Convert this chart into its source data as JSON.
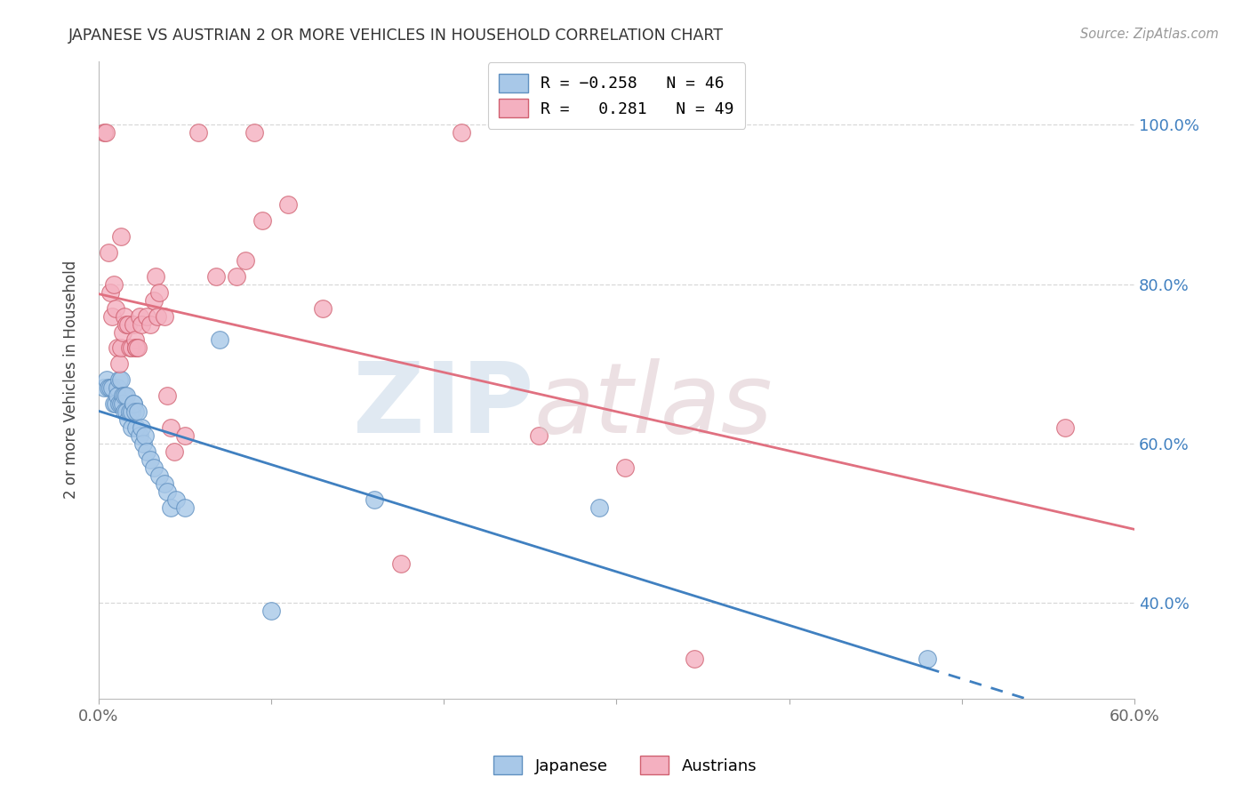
{
  "title": "JAPANESE VS AUSTRIAN 2 OR MORE VEHICLES IN HOUSEHOLD CORRELATION CHART",
  "source": "Source: ZipAtlas.com",
  "ylabel": "2 or more Vehicles in Household",
  "xlim": [
    0.0,
    0.6
  ],
  "ylim": [
    0.28,
    1.08
  ],
  "xticks": [
    0.0,
    0.1,
    0.2,
    0.3,
    0.4,
    0.5,
    0.6
  ],
  "xticklabels": [
    "0.0%",
    "",
    "",
    "",
    "",
    "",
    "60.0%"
  ],
  "ytick_positions": [
    0.4,
    0.6,
    0.8,
    1.0
  ],
  "ytick_labels": [
    "40.0%",
    "60.0%",
    "80.0%",
    "100.0%"
  ],
  "japanese_color": "#a8c8e8",
  "austrian_color": "#f4b0c0",
  "japanese_edge_color": "#6090c0",
  "austrian_edge_color": "#d06070",
  "japanese_line_color": "#4080c0",
  "austrian_line_color": "#e07080",
  "japanese_scatter": [
    [
      0.003,
      0.67
    ],
    [
      0.005,
      0.68
    ],
    [
      0.006,
      0.67
    ],
    [
      0.007,
      0.67
    ],
    [
      0.008,
      0.67
    ],
    [
      0.009,
      0.65
    ],
    [
      0.01,
      0.65
    ],
    [
      0.011,
      0.67
    ],
    [
      0.011,
      0.66
    ],
    [
      0.012,
      0.68
    ],
    [
      0.012,
      0.65
    ],
    [
      0.013,
      0.68
    ],
    [
      0.013,
      0.65
    ],
    [
      0.014,
      0.66
    ],
    [
      0.014,
      0.65
    ],
    [
      0.015,
      0.64
    ],
    [
      0.015,
      0.66
    ],
    [
      0.016,
      0.66
    ],
    [
      0.016,
      0.64
    ],
    [
      0.017,
      0.63
    ],
    [
      0.018,
      0.64
    ],
    [
      0.019,
      0.64
    ],
    [
      0.019,
      0.62
    ],
    [
      0.02,
      0.65
    ],
    [
      0.02,
      0.65
    ],
    [
      0.021,
      0.64
    ],
    [
      0.022,
      0.62
    ],
    [
      0.023,
      0.64
    ],
    [
      0.024,
      0.61
    ],
    [
      0.025,
      0.62
    ],
    [
      0.026,
      0.6
    ],
    [
      0.027,
      0.61
    ],
    [
      0.028,
      0.59
    ],
    [
      0.03,
      0.58
    ],
    [
      0.032,
      0.57
    ],
    [
      0.035,
      0.56
    ],
    [
      0.038,
      0.55
    ],
    [
      0.04,
      0.54
    ],
    [
      0.042,
      0.52
    ],
    [
      0.045,
      0.53
    ],
    [
      0.05,
      0.52
    ],
    [
      0.07,
      0.73
    ],
    [
      0.1,
      0.39
    ],
    [
      0.16,
      0.53
    ],
    [
      0.29,
      0.52
    ],
    [
      0.48,
      0.33
    ]
  ],
  "austrian_scatter": [
    [
      0.003,
      0.99
    ],
    [
      0.004,
      0.99
    ],
    [
      0.006,
      0.84
    ],
    [
      0.007,
      0.79
    ],
    [
      0.008,
      0.76
    ],
    [
      0.009,
      0.8
    ],
    [
      0.01,
      0.77
    ],
    [
      0.011,
      0.72
    ],
    [
      0.012,
      0.7
    ],
    [
      0.013,
      0.72
    ],
    [
      0.013,
      0.86
    ],
    [
      0.014,
      0.74
    ],
    [
      0.015,
      0.76
    ],
    [
      0.016,
      0.75
    ],
    [
      0.017,
      0.75
    ],
    [
      0.018,
      0.72
    ],
    [
      0.019,
      0.72
    ],
    [
      0.02,
      0.75
    ],
    [
      0.021,
      0.73
    ],
    [
      0.022,
      0.72
    ],
    [
      0.022,
      0.72
    ],
    [
      0.023,
      0.72
    ],
    [
      0.024,
      0.76
    ],
    [
      0.025,
      0.75
    ],
    [
      0.028,
      0.76
    ],
    [
      0.03,
      0.75
    ],
    [
      0.032,
      0.78
    ],
    [
      0.033,
      0.81
    ],
    [
      0.034,
      0.76
    ],
    [
      0.035,
      0.79
    ],
    [
      0.038,
      0.76
    ],
    [
      0.04,
      0.66
    ],
    [
      0.042,
      0.62
    ],
    [
      0.044,
      0.59
    ],
    [
      0.05,
      0.61
    ],
    [
      0.058,
      0.99
    ],
    [
      0.068,
      0.81
    ],
    [
      0.08,
      0.81
    ],
    [
      0.085,
      0.83
    ],
    [
      0.09,
      0.99
    ],
    [
      0.095,
      0.88
    ],
    [
      0.11,
      0.9
    ],
    [
      0.13,
      0.77
    ],
    [
      0.175,
      0.45
    ],
    [
      0.21,
      0.99
    ],
    [
      0.255,
      0.61
    ],
    [
      0.305,
      0.57
    ],
    [
      0.345,
      0.33
    ],
    [
      0.56,
      0.62
    ]
  ],
  "background_color": "#ffffff",
  "grid_color": "#d8d8d8",
  "watermark_zip_color": "#c8d8e8",
  "watermark_atlas_color": "#ddc8cc"
}
